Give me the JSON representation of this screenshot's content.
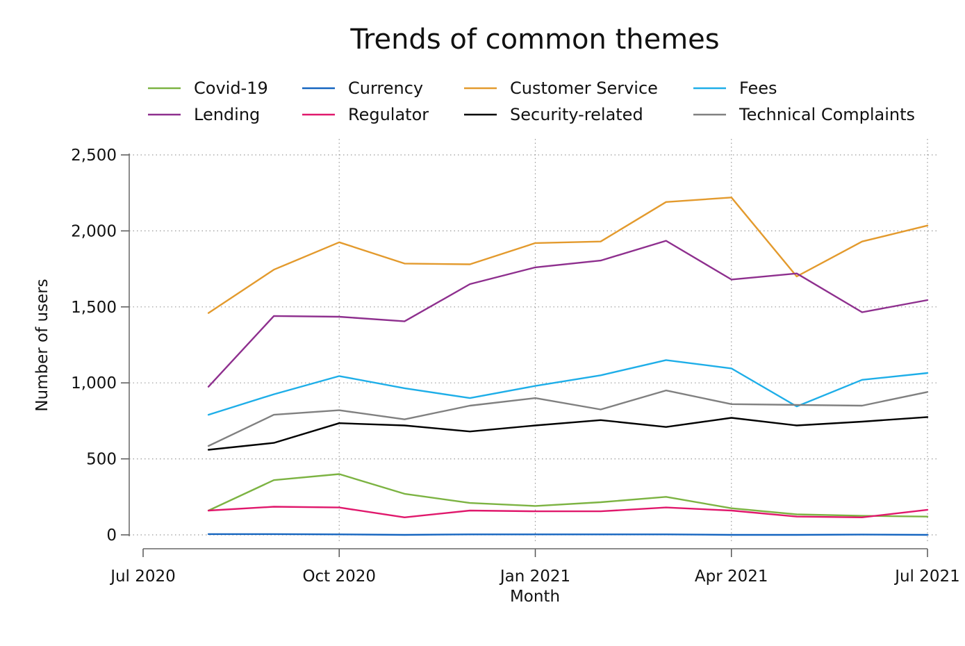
{
  "chart_data": {
    "type": "line",
    "title": "Trends of common themes",
    "xlabel": "Month",
    "ylabel": "Number of users",
    "ylim": [
      0,
      2500
    ],
    "xlim": [
      "2020-07",
      "2021-07"
    ],
    "yticks": [
      0,
      500,
      1000,
      1500,
      2000,
      2500
    ],
    "ytick_labels": [
      "0",
      "500",
      "1,000",
      "1,500",
      "2,000",
      "2,500"
    ],
    "xticks": [
      "2020-07",
      "2020-10",
      "2021-01",
      "2021-04",
      "2021-07"
    ],
    "xtick_labels": [
      "Jul 2020",
      "Oct 2020",
      "Jan 2021",
      "Apr 2021",
      "Jul 2021"
    ],
    "grid": true,
    "legend_position": "top",
    "x": [
      "2020-08",
      "2020-09",
      "2020-10",
      "2020-11",
      "2020-12",
      "2021-01",
      "2021-02",
      "2021-03",
      "2021-04",
      "2021-05",
      "2021-06",
      "2021-07"
    ],
    "series": [
      {
        "name": "Covid-19",
        "color": "#7cb342",
        "values": [
          160,
          360,
          400,
          270,
          210,
          190,
          215,
          250,
          175,
          135,
          125,
          120
        ]
      },
      {
        "name": "Currency",
        "color": "#1565c0",
        "values": [
          5,
          5,
          3,
          0,
          3,
          3,
          3,
          3,
          0,
          0,
          2,
          0
        ]
      },
      {
        "name": "Customer Service",
        "color": "#e39a2d",
        "values": [
          1460,
          1745,
          1925,
          1785,
          1780,
          1920,
          1930,
          2190,
          2220,
          1700,
          1930,
          2035
        ]
      },
      {
        "name": "Fees",
        "color": "#1eaee8",
        "values": [
          790,
          925,
          1045,
          965,
          900,
          980,
          1050,
          1150,
          1095,
          845,
          1020,
          1065
        ]
      },
      {
        "name": "Lending",
        "color": "#8e2f8e",
        "values": [
          975,
          1440,
          1435,
          1405,
          1650,
          1760,
          1805,
          1935,
          1680,
          1720,
          1465,
          1545
        ]
      },
      {
        "name": "Regulator",
        "color": "#e0186c",
        "values": [
          160,
          185,
          180,
          115,
          160,
          155,
          155,
          180,
          160,
          120,
          115,
          165
        ]
      },
      {
        "name": "Security-related",
        "color": "#000000",
        "values": [
          560,
          605,
          735,
          720,
          680,
          720,
          755,
          710,
          770,
          720,
          745,
          775
        ]
      },
      {
        "name": "Technical Complaints",
        "color": "#808080",
        "values": [
          585,
          790,
          820,
          760,
          850,
          900,
          825,
          950,
          860,
          855,
          850,
          940
        ]
      }
    ]
  }
}
